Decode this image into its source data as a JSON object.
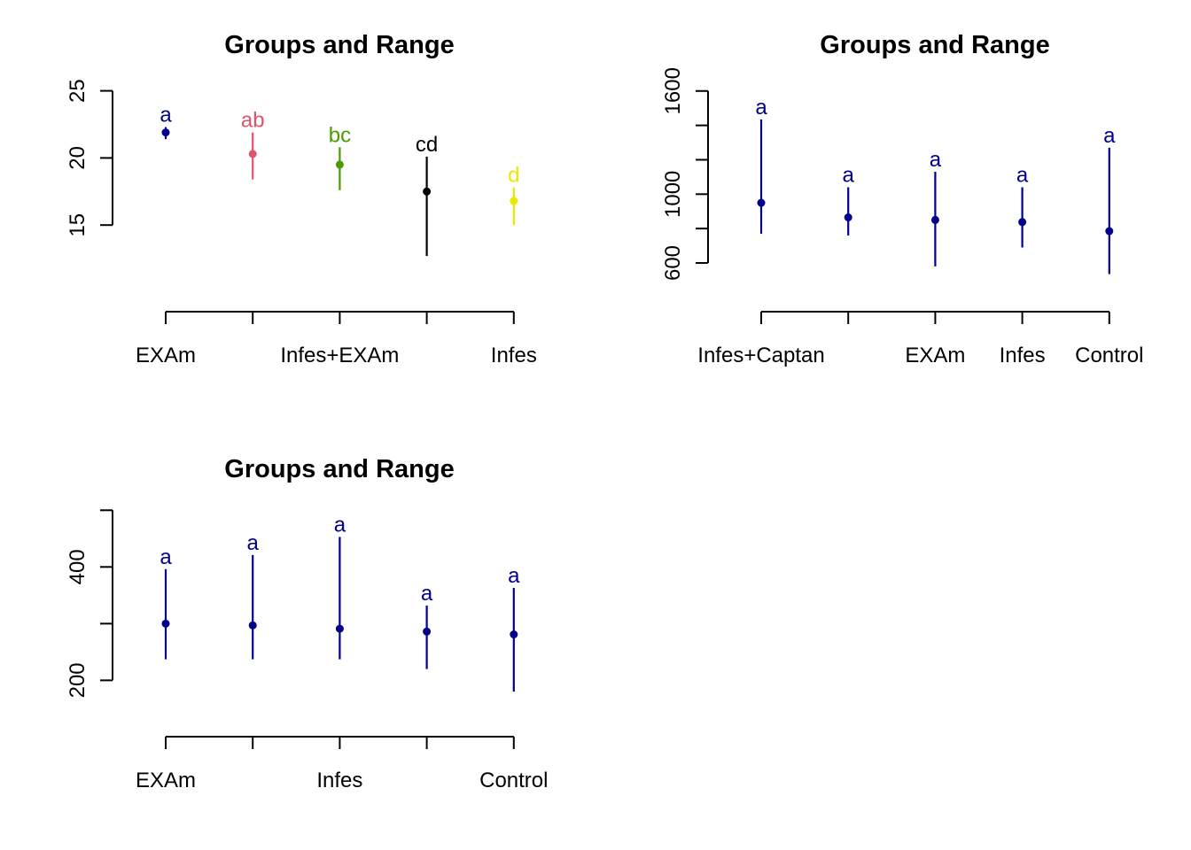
{
  "chart_data": [
    {
      "type": "scatter",
      "title": "Groups and Range",
      "xlabel": "",
      "ylabel": "",
      "y_ticks": [
        15,
        20,
        25
      ],
      "ylim": [
        10,
        25.5
      ],
      "x_tick_labels": [
        "EXAm",
        "",
        "Infes+EXAm",
        "",
        "Infes"
      ],
      "grid": false,
      "points": [
        {
          "mean": 21.9,
          "low": 21.4,
          "high": 22.3,
          "letter": "a",
          "color": "#00008B"
        },
        {
          "mean": 20.3,
          "low": 18.4,
          "high": 21.9,
          "letter": "ab",
          "color": "#DF536B"
        },
        {
          "mean": 19.5,
          "low": 17.6,
          "high": 20.8,
          "letter": "bc",
          "color": "#4A9A00"
        },
        {
          "mean": 17.5,
          "low": 12.7,
          "high": 20.1,
          "letter": "cd",
          "color": "#000000"
        },
        {
          "mean": 16.8,
          "low": 15.0,
          "high": 17.8,
          "letter": "d",
          "color": "#E8E800"
        }
      ]
    },
    {
      "type": "scatter",
      "title": "Groups and Range",
      "xlabel": "",
      "ylabel": "",
      "y_ticks": [
        600,
        800,
        1000,
        1200,
        1400,
        1600
      ],
      "y_tick_labels": [
        "600",
        "",
        "1000",
        "",
        "",
        "1600"
      ],
      "ylim": [
        430,
        1640
      ],
      "x_tick_labels": [
        "Infes+Captan",
        "",
        "EXAm",
        "Infes",
        "Control"
      ],
      "grid": false,
      "points": [
        {
          "mean": 950,
          "low": 770,
          "high": 1435,
          "letter": "a",
          "color": "#00008B"
        },
        {
          "mean": 865,
          "low": 760,
          "high": 1040,
          "letter": "a",
          "color": "#00008B"
        },
        {
          "mean": 850,
          "low": 580,
          "high": 1130,
          "letter": "a",
          "color": "#00008B"
        },
        {
          "mean": 838,
          "low": 690,
          "high": 1040,
          "letter": "a",
          "color": "#00008B"
        },
        {
          "mean": 785,
          "low": 535,
          "high": 1270,
          "letter": "a",
          "color": "#00008B"
        }
      ]
    },
    {
      "type": "scatter",
      "title": "Groups and Range",
      "xlabel": "",
      "ylabel": "",
      "y_ticks": [
        200,
        300,
        400,
        500
      ],
      "y_tick_labels": [
        "200",
        "",
        "400",
        ""
      ],
      "ylim": [
        135,
        502
      ],
      "x_tick_labels": [
        "EXAm",
        "",
        "Infes",
        "",
        "Control"
      ],
      "grid": false,
      "points": [
        {
          "mean": 300,
          "low": 237,
          "high": 396,
          "letter": "a",
          "color": "#00008B"
        },
        {
          "mean": 297,
          "low": 237,
          "high": 421,
          "letter": "a",
          "color": "#00008B"
        },
        {
          "mean": 291,
          "low": 237,
          "high": 453,
          "letter": "a",
          "color": "#00008B"
        },
        {
          "mean": 286,
          "low": 220,
          "high": 332,
          "letter": "a",
          "color": "#00008B"
        },
        {
          "mean": 281,
          "low": 180,
          "high": 363,
          "letter": "a",
          "color": "#00008B"
        }
      ]
    }
  ]
}
